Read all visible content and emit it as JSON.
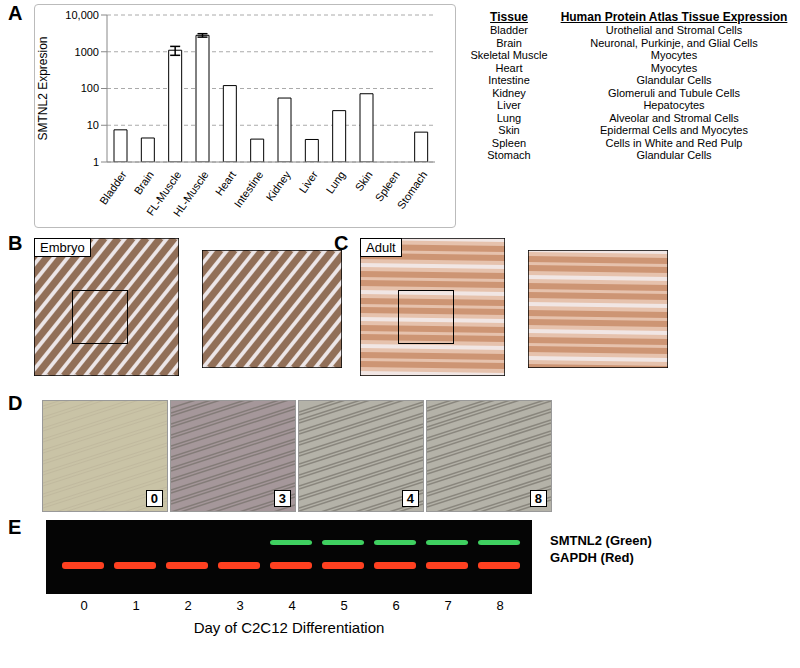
{
  "chart_data": {
    "type": "bar",
    "panel": "A",
    "y_label": "SMTNL2 Expresion",
    "log": "y",
    "grid": true,
    "color": "#ffffff",
    "categories": [
      "Bladder",
      "Brain",
      "FL-Muscle",
      "HL-Muscle",
      "Heart",
      "Intestine",
      "Kidney",
      "Liver",
      "Lung",
      "Skin",
      "Spleen",
      "Stomach"
    ],
    "values": [
      7.5,
      4.5,
      1100,
      2800,
      120,
      4.2,
      55,
      4.1,
      25,
      72,
      1,
      6.5
    ],
    "errors": [
      null,
      null,
      300,
      300,
      null,
      null,
      null,
      null,
      null,
      null,
      null,
      null
    ],
    "ylim": [
      1,
      10000
    ],
    "yticks": [
      1,
      10,
      100,
      1000,
      {
        "value": 10000,
        "label": "10,000"
      }
    ]
  },
  "tissue_table": {
    "headers": [
      "Tissue",
      "Human Protein Atlas Tissue Expression"
    ],
    "rows": [
      [
        "Bladder",
        "Urothelial and Stromal Cells"
      ],
      [
        "Brain",
        "Neuronal, Purkinje, and Glial Cells"
      ],
      [
        "Skeletal Muscle",
        "Myocytes"
      ],
      [
        "Heart",
        "Myocytes"
      ],
      [
        "Intestine",
        "Glandular Cells"
      ],
      [
        "Kidney",
        "Glomeruli and Tubule Cells"
      ],
      [
        "Liver",
        "Hepatocytes"
      ],
      [
        "Lung",
        "Alveolar and Stromal Cells"
      ],
      [
        "Skin",
        "Epidermal Cells and Myocytes"
      ],
      [
        "Spleen",
        "Cells in White and Red Pulp"
      ],
      [
        "Stomach",
        "Glandular Cells"
      ]
    ]
  },
  "histology": [
    {
      "panel": "B",
      "label": "Embryo"
    },
    {
      "panel": "C",
      "label": "Adult"
    }
  ],
  "culture": {
    "panel": "D",
    "days": [
      "0",
      "3",
      "4",
      "8"
    ]
  },
  "blot": {
    "panel": "E",
    "lanes": [
      "0",
      "1",
      "2",
      "3",
      "4",
      "5",
      "6",
      "7",
      "8"
    ],
    "x_label": "Day of C2C12 Differentiation",
    "series": [
      {
        "name": "SMTNL2 (Green)",
        "color": "#3fd060",
        "present": [
          false,
          false,
          false,
          false,
          true,
          true,
          true,
          true,
          true
        ]
      },
      {
        "name": "GAPDH (Red)",
        "color": "#ff4020",
        "present": [
          true,
          true,
          true,
          true,
          true,
          true,
          true,
          true,
          true
        ]
      }
    ]
  }
}
